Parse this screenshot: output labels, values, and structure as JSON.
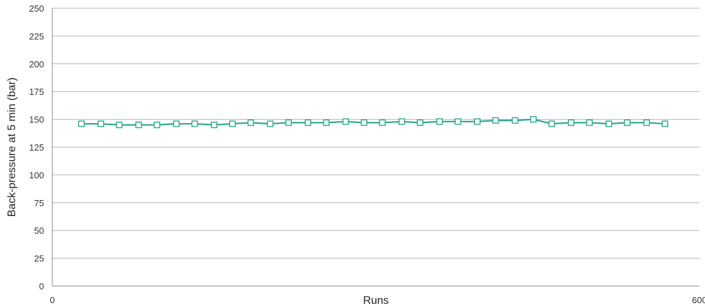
{
  "chart_data": {
    "type": "line",
    "title": "",
    "xlabel": "Runs",
    "ylabel": "Back-pressure at 5 min (bar)",
    "xlim": [
      0,
      600
    ],
    "ylim": [
      0,
      250
    ],
    "x_ticks": [
      "0",
      "600"
    ],
    "y_ticks": [
      "0",
      "25",
      "50",
      "75",
      "100",
      "125",
      "150",
      "175",
      "200",
      "225",
      "250"
    ],
    "grid": "horizontal",
    "marker": "open-square",
    "series": [
      {
        "color": "#2aa88c",
        "x": [
          27,
          45,
          62,
          80,
          97,
          115,
          132,
          150,
          167,
          184,
          202,
          219,
          237,
          254,
          272,
          289,
          306,
          324,
          341,
          359,
          376,
          394,
          411,
          429,
          446,
          463,
          481,
          498,
          516,
          533,
          551,
          568
        ],
        "y": [
          146,
          146,
          145,
          145,
          145,
          146,
          146,
          145,
          146,
          147,
          146,
          147,
          147,
          147,
          148,
          147,
          147,
          148,
          147,
          148,
          148,
          148,
          149,
          149,
          150,
          146,
          147,
          147,
          146,
          147,
          147,
          146
        ]
      }
    ]
  }
}
